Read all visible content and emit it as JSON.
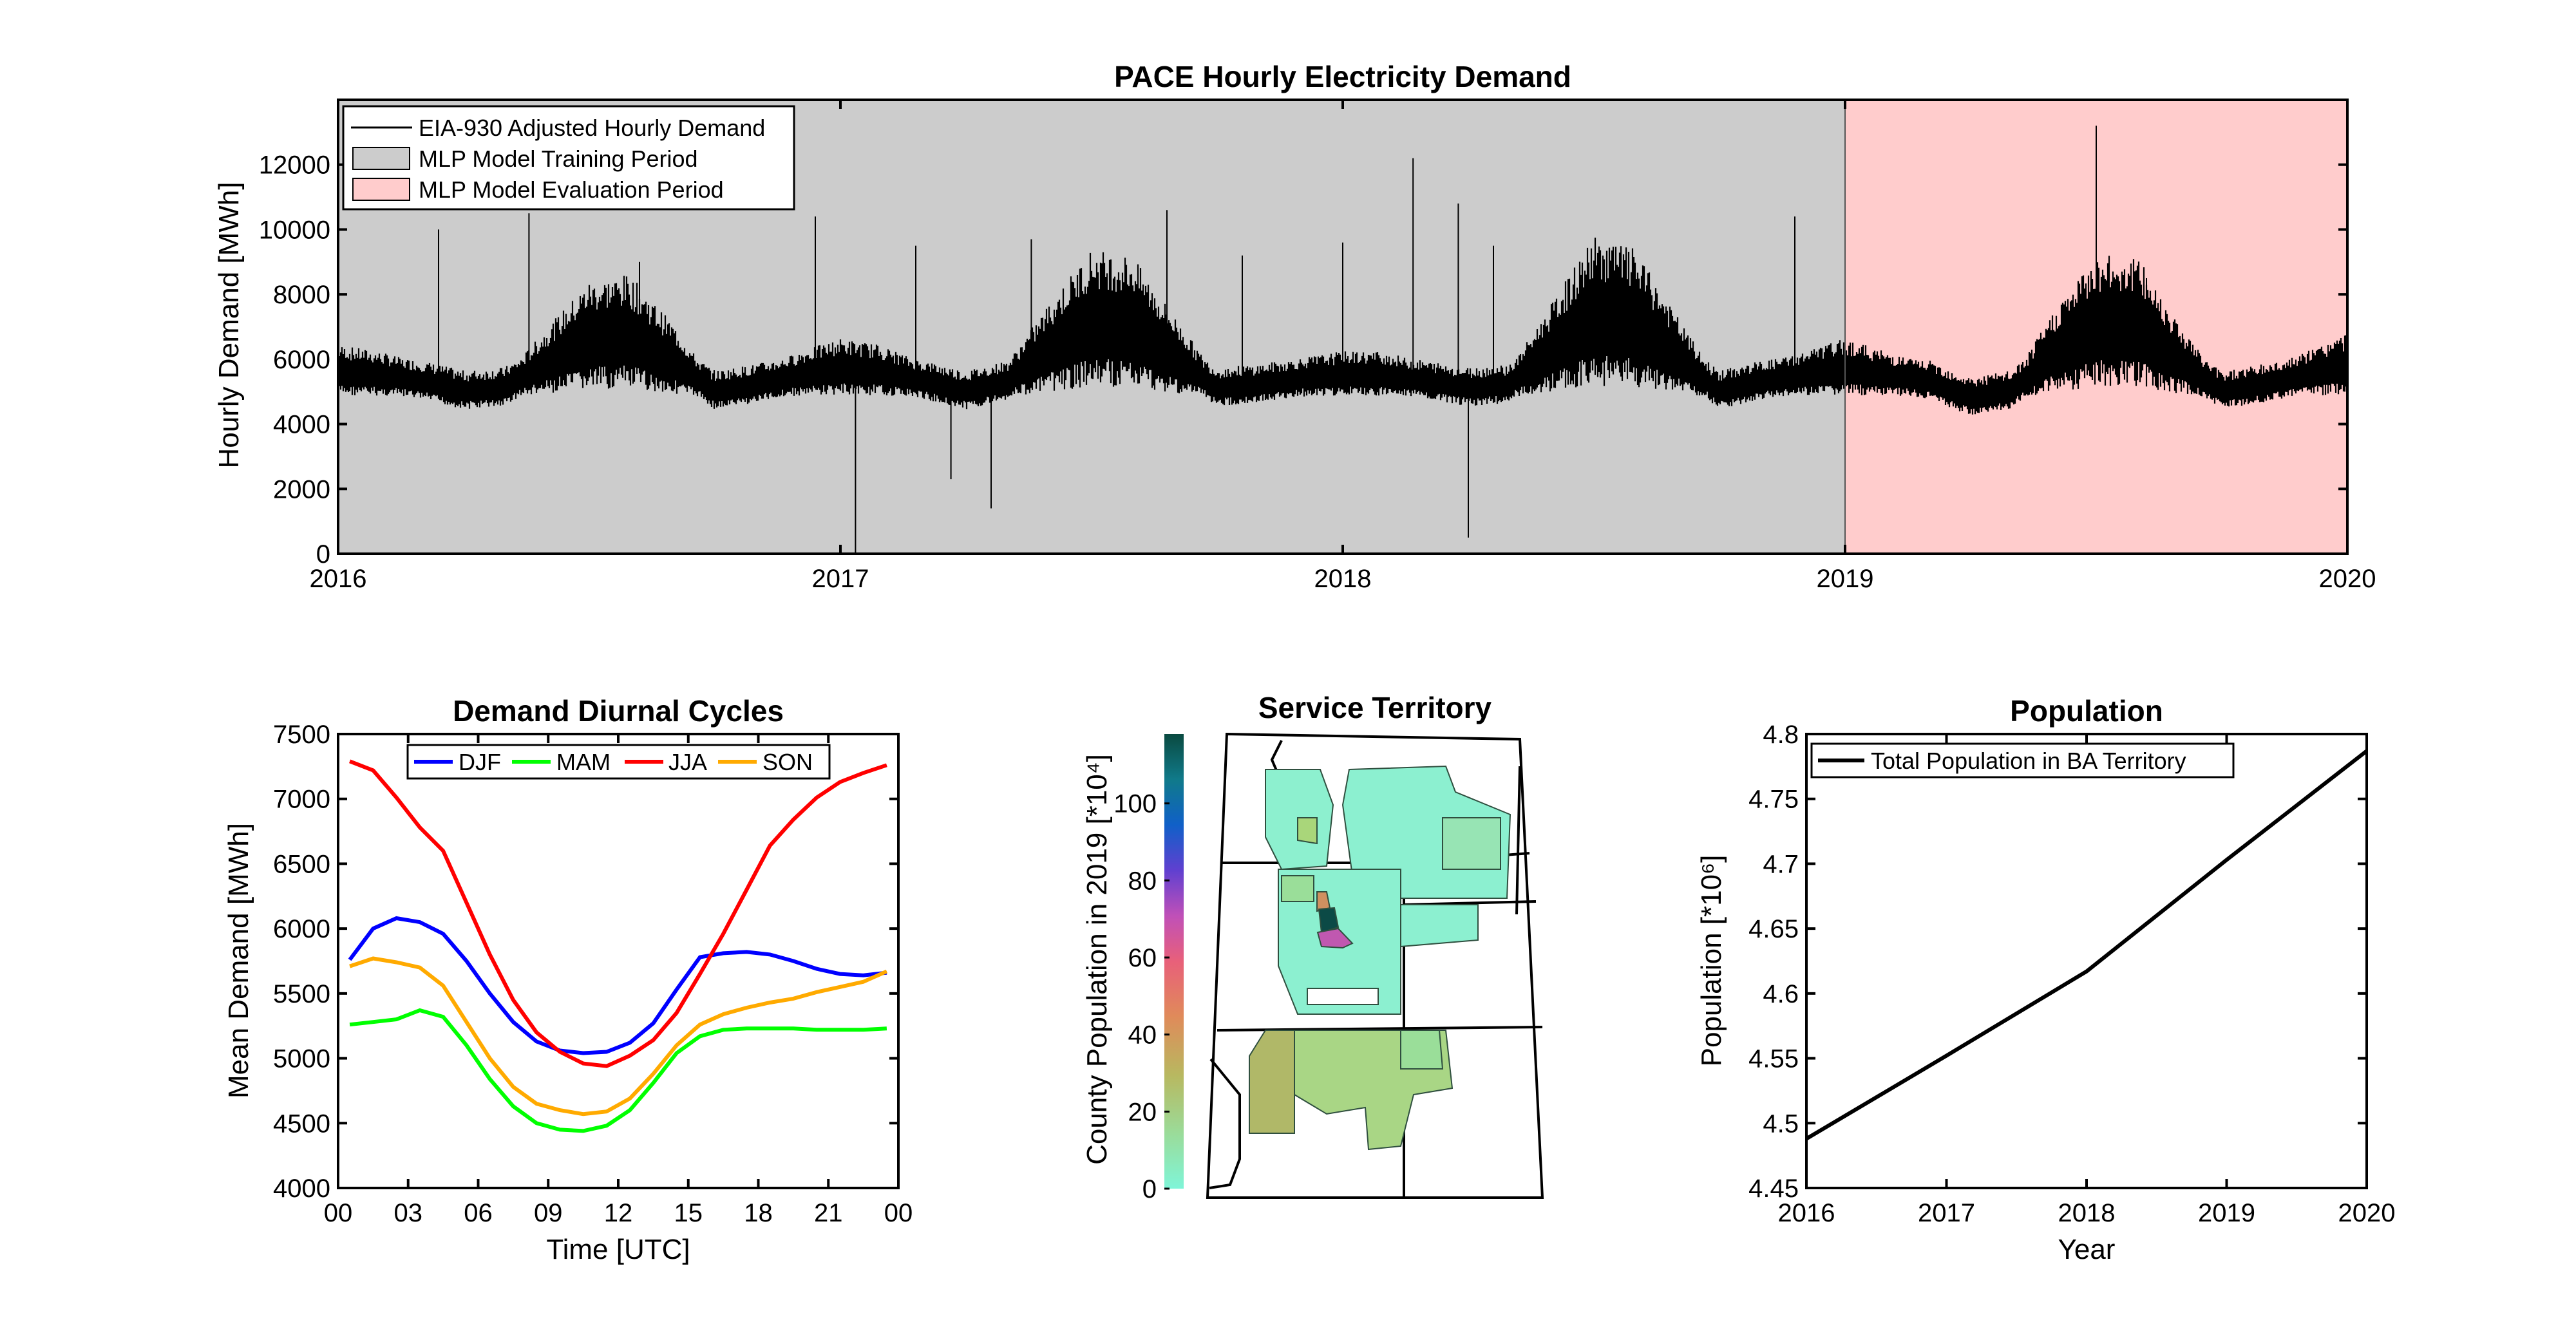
{
  "chart_data": [
    {
      "type": "line",
      "title": "PACE Hourly Electricity Demand",
      "ylabel": "Hourly Demand [MWh]",
      "xlabel": "",
      "xlim": [
        2016,
        2020
      ],
      "ylim": [
        0,
        14000
      ],
      "xticks": [
        "2016",
        "2017",
        "2018",
        "2019",
        "2020"
      ],
      "yticks": [
        "0",
        "2000",
        "4000",
        "6000",
        "8000",
        "10000",
        "12000"
      ],
      "grid": false,
      "legend_position": "top-left",
      "legend": [
        "EIA-930 Adjusted Hourly Demand",
        "MLP Model Training Period",
        "MLP Model Evaluation Period"
      ],
      "shaded_periods": [
        {
          "label": "MLP Model Training Period",
          "start": 2016,
          "end": 2019,
          "color": "#cccccc"
        },
        {
          "label": "MLP Model Evaluation Period",
          "start": 2019,
          "end": 2020,
          "color": "#ffcccc"
        }
      ],
      "series": [
        {
          "name": "EIA-930 Adjusted Hourly Demand",
          "color": "#000000",
          "x": [
            2016.0,
            2016.08,
            2016.17,
            2016.25,
            2016.33,
            2016.42,
            2016.5,
            2016.58,
            2016.67,
            2016.75,
            2016.83,
            2016.92,
            2017.0,
            2017.08,
            2017.17,
            2017.25,
            2017.33,
            2017.42,
            2017.5,
            2017.58,
            2017.67,
            2017.75,
            2017.83,
            2017.92,
            2018.0,
            2018.08,
            2018.17,
            2018.25,
            2018.33,
            2018.42,
            2018.5,
            2018.58,
            2018.67,
            2018.75,
            2018.83,
            2018.92,
            2019.0,
            2019.08,
            2019.17,
            2019.25,
            2019.33,
            2019.42,
            2019.5,
            2019.58,
            2019.67,
            2019.75,
            2019.83,
            2019.92,
            2020.0
          ],
          "mean": [
            5600,
            5500,
            5300,
            5000,
            5100,
            5900,
            6600,
            6700,
            5900,
            5000,
            5200,
            5500,
            5700,
            5600,
            5300,
            5000,
            5300,
            6300,
            7100,
            7000,
            6000,
            5100,
            5200,
            5400,
            5500,
            5500,
            5300,
            5100,
            5200,
            6300,
            7300,
            7100,
            6000,
            5000,
            5300,
            5500,
            5700,
            5500,
            5300,
            4800,
            5000,
            6200,
            7000,
            7000,
            5900,
            5000,
            5200,
            5500,
            5800
          ],
          "spikes": [
            [
              2016.2,
              10000
            ],
            [
              2016.38,
              10500
            ],
            [
              2016.6,
              9000
            ],
            [
              2016.95,
              10400
            ],
            [
              2017.03,
              0
            ],
            [
              2017.15,
              9500
            ],
            [
              2017.22,
              2300
            ],
            [
              2017.3,
              1400
            ],
            [
              2017.38,
              9700
            ],
            [
              2017.65,
              10600
            ],
            [
              2017.8,
              9200
            ],
            [
              2018.0,
              9600
            ],
            [
              2018.14,
              12200
            ],
            [
              2018.25,
              500
            ],
            [
              2018.23,
              10800
            ],
            [
              2018.3,
              9500
            ],
            [
              2018.9,
              10400
            ],
            [
              2019.5,
              13200
            ],
            [
              2019.6,
              8500
            ]
          ]
        }
      ]
    },
    {
      "type": "line",
      "title": "Demand Diurnal Cycles",
      "xlabel": "Time [UTC]",
      "ylabel": "Mean Demand [MWh]",
      "xlim": [
        0,
        24
      ],
      "ylim": [
        4000,
        7500
      ],
      "xticks": [
        "00",
        "03",
        "06",
        "09",
        "12",
        "15",
        "18",
        "21",
        "00"
      ],
      "yticks": [
        "4000",
        "4500",
        "5000",
        "5500",
        "6000",
        "6500",
        "7000",
        "7500"
      ],
      "grid": false,
      "legend_position": "top",
      "x": [
        0.5,
        1.5,
        2.5,
        3.5,
        4.5,
        5.5,
        6.5,
        7.5,
        8.5,
        9.5,
        10.5,
        11.5,
        12.5,
        13.5,
        14.5,
        15.5,
        16.5,
        17.5,
        18.5,
        19.5,
        20.5,
        21.5,
        22.5,
        23.5
      ],
      "series": [
        {
          "name": "DJF",
          "color": "#0000ff",
          "values": [
            5760,
            6000,
            6080,
            6050,
            5960,
            5750,
            5500,
            5280,
            5130,
            5060,
            5040,
            5050,
            5120,
            5270,
            5530,
            5780,
            5810,
            5820,
            5800,
            5750,
            5690,
            5650,
            5640,
            5660
          ]
        },
        {
          "name": "MAM",
          "color": "#00ff00",
          "values": [
            5260,
            5280,
            5300,
            5370,
            5320,
            5100,
            4840,
            4630,
            4500,
            4450,
            4440,
            4480,
            4600,
            4810,
            5040,
            5170,
            5220,
            5230,
            5230,
            5230,
            5220,
            5220,
            5220,
            5230
          ]
        },
        {
          "name": "JJA",
          "color": "#ff0000",
          "values": [
            7290,
            7220,
            7010,
            6780,
            6600,
            6200,
            5800,
            5450,
            5200,
            5050,
            4960,
            4940,
            5020,
            5140,
            5350,
            5650,
            5960,
            6300,
            6640,
            6840,
            7010,
            7130,
            7200,
            7260
          ]
        },
        {
          "name": "SON",
          "color": "#ffaa00",
          "values": [
            5710,
            5770,
            5740,
            5700,
            5560,
            5280,
            5000,
            4780,
            4650,
            4600,
            4570,
            4590,
            4690,
            4880,
            5100,
            5260,
            5340,
            5390,
            5430,
            5460,
            5510,
            5550,
            5590,
            5670
          ]
        }
      ]
    },
    {
      "type": "heatmap",
      "title": "Service Territory",
      "colorbar_label": "County Population in 2019 [*10⁴]",
      "colorbar_ticks": [
        "0",
        "20",
        "40",
        "60",
        "80",
        "100"
      ],
      "colorbar_range": [
        0,
        118
      ]
    },
    {
      "type": "line",
      "title": "Population",
      "xlabel": "Year",
      "ylabel": "Population [*10⁶]",
      "xlim": [
        2016,
        2020
      ],
      "ylim": [
        4.45,
        4.8
      ],
      "xticks": [
        "2016",
        "2017",
        "2018",
        "2019",
        "2020"
      ],
      "yticks": [
        "4.45",
        "4.5",
        "4.55",
        "4.6",
        "4.65",
        "4.7",
        "4.75",
        "4.8"
      ],
      "grid": false,
      "legend_position": "top-left",
      "x": [
        2016,
        2017,
        2018,
        2019,
        2020
      ],
      "series": [
        {
          "name": "Total Population in BA Territory",
          "color": "#000000",
          "values": [
            4.488,
            4.552,
            4.617,
            4.703,
            4.787
          ]
        }
      ]
    }
  ]
}
